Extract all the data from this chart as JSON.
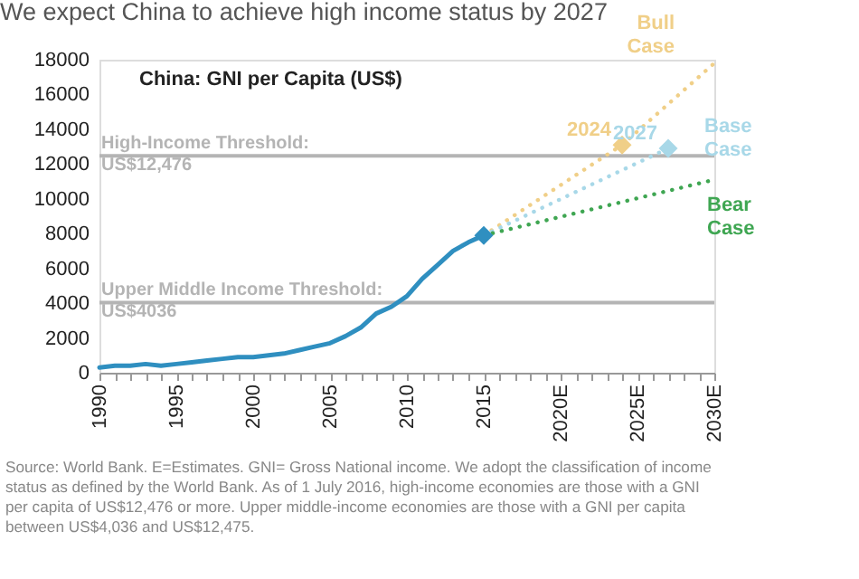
{
  "chart_data": {
    "type": "line",
    "title": "We expect China to achieve high income status by 2027",
    "subtitle": "China: GNI per Capita (US$)",
    "series": [
      {
        "color": "#2f8fc0",
        "line_style": "solid",
        "x": [
          1990,
          1991,
          1992,
          1993,
          1994,
          1995,
          1996,
          1997,
          1998,
          1999,
          2000,
          2001,
          2002,
          2003,
          2004,
          2005,
          2006,
          2007,
          2008,
          2009,
          2010,
          2011,
          2012,
          2013,
          2014,
          2015
        ],
        "values": [
          300,
          400,
          400,
          500,
          400,
          500,
          600,
          700,
          800,
          900,
          900,
          1000,
          1100,
          1300,
          1500,
          1700,
          2100,
          2600,
          3400,
          3800,
          4400,
          5400,
          6200,
          7000,
          7500,
          7900
        ]
      },
      {
        "name": "Bull Case",
        "color": "#f0cf88",
        "line_style": "dotted",
        "x": [
          2015,
          2024,
          2030
        ],
        "values": [
          7900,
          13100,
          17800
        ]
      },
      {
        "name": "Base Case",
        "color": "#a8d8e8",
        "line_style": "dotted",
        "x": [
          2015,
          2027
        ],
        "values": [
          7900,
          12900
        ]
      },
      {
        "name": "Bear Case",
        "color": "#3fa652",
        "line_style": "dotted",
        "x": [
          2015,
          2030
        ],
        "values": [
          7900,
          11100
        ]
      },
      {
        "type": "scatter",
        "marker": "diamond",
        "color": "#2f8fc0",
        "x": [
          2015
        ],
        "values": [
          7900
        ]
      },
      {
        "type": "scatter",
        "marker": "diamond",
        "color": "#f0cf88",
        "x": [
          2024
        ],
        "values": [
          13100
        ]
      },
      {
        "type": "scatter",
        "marker": "diamond",
        "color": "#a8d8e8",
        "x": [
          2027
        ],
        "values": [
          12900
        ]
      }
    ],
    "ref_lines": [
      {
        "axis": "y",
        "value": 12476,
        "label": "High-Income Threshold: US$12,476",
        "color": "#b4b4b4"
      },
      {
        "axis": "y",
        "value": 4036,
        "label": "Upper Middle Income Threshold: US$4036",
        "color": "#b4b4b4"
      }
    ],
    "annotations": [
      {
        "text": "2024",
        "x": 2024,
        "y": 13100
      },
      {
        "text": "2027",
        "x": 2027,
        "y": 12900
      },
      "Source: World Bank. E=Estimates. GNI= Gross National income. We adopt the classification of income status as defined by the World Bank. As of 1 July 2016, high-income economies are those with a GNI per capita of US$12,476 or more. Upper middle-income economies are those with a GNI per capita between US$4,036 and US$12,475."
    ],
    "xlim": [
      1990,
      2030
    ],
    "xticks": [
      1990,
      {
        "value": 1991,
        "label": null
      },
      {
        "value": 1992,
        "label": null
      },
      {
        "value": 1993,
        "label": null
      },
      {
        "value": 1994,
        "label": null
      },
      1995,
      {
        "value": 1996,
        "label": null
      },
      {
        "value": 1997,
        "label": null
      },
      {
        "value": 1998,
        "label": null
      },
      {
        "value": 1999,
        "label": null
      },
      2000,
      {
        "value": 2001,
        "label": null
      },
      {
        "value": 2002,
        "label": null
      },
      {
        "value": 2003,
        "label": null
      },
      {
        "value": 2004,
        "label": null
      },
      2005,
      {
        "value": 2006,
        "label": null
      },
      {
        "value": 2007,
        "label": null
      },
      {
        "value": 2008,
        "label": null
      },
      {
        "value": 2009,
        "label": null
      },
      2010,
      {
        "value": 2011,
        "label": null
      },
      {
        "value": 2012,
        "label": null
      },
      {
        "value": 2013,
        "label": null
      },
      {
        "value": 2014,
        "label": null
      },
      2015,
      {
        "value": 2016,
        "label": null
      },
      {
        "value": 2017,
        "label": null
      },
      {
        "value": 2018,
        "label": null
      },
      {
        "value": 2019,
        "label": null
      },
      {
        "value": 2020,
        "label": "2020E"
      },
      {
        "value": 2021,
        "label": null
      },
      {
        "value": 2022,
        "label": null
      },
      {
        "value": 2023,
        "label": null
      },
      {
        "value": 2024,
        "label": null
      },
      {
        "value": 2025,
        "label": "2025E"
      },
      {
        "value": 2026,
        "label": null
      },
      {
        "value": 2027,
        "label": null
      },
      {
        "value": 2028,
        "label": null
      },
      {
        "value": 2029,
        "label": null
      },
      {
        "value": 2030,
        "label": "2030E"
      }
    ],
    "ylim": [
      0,
      18000
    ],
    "yticks": [
      0,
      2000,
      4000,
      6000,
      8000,
      10000,
      12000,
      14000,
      16000,
      18000
    ],
    "grid": false
  }
}
